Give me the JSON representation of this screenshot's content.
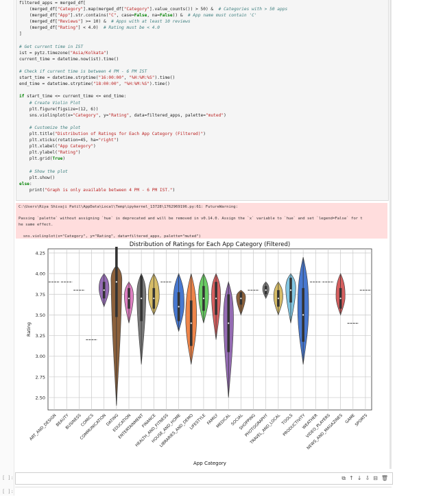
{
  "code_cell": {
    "lines": [
      "filtered_apps = merged_df[",
      "    (merged_df[\"Category\"].map(merged_df[\"Category\"].value_counts()) > 50) &  # Categories with > 50 apps",
      "    (merged_df[\"App\"].str.contains(\"C\", case=False, na=False)) &  # App name must contain 'C'",
      "    (merged_df[\"Reviews\"] >= 10) &  # Apps with at least 10 reviews",
      "    (merged_df[\"Rating\"] < 4.0)  # Rating must be < 4.0",
      "]",
      "",
      "# Get current time in IST",
      "ist = pytz.timezone(\"Asia/Kolkata\")",
      "current_time = datetime.now(ist).time()",
      "",
      "# Check if current time is between 4 PM - 6 PM IST",
      "start_time = datetime.strptime(\"16:00:00\", \"%H:%M:%S\").time()",
      "end_time = datetime.strptime(\"18:00:00\", \"%H:%M:%S\").time()",
      "",
      "if start_time <= current_time <= end_time:",
      "    # Create Violin Plot",
      "    plt.figure(figsize=(12, 6))",
      "    sns.violinplot(x=\"Category\", y=\"Rating\", data=filtered_apps, palette=\"muted\")",
      "",
      "    # Customize the plot",
      "    plt.title(\"Distribution of Ratings for Each App Category (Filtered)\")",
      "    plt.xticks(rotation=45, ha=\"right\")",
      "    plt.xlabel(\"App Category\")",
      "    plt.ylabel(\"Rating\")",
      "    plt.grid(True)",
      "",
      "    # Show the plot",
      "    plt.show()",
      "else:",
      "    print(\"Graph is only available between 4 PM - 6 PM IST.\")"
    ]
  },
  "stderr_output": {
    "lines": [
      "C:\\Users\\Riya Shivaji Patil\\AppData\\Local\\Temp\\ipykernel_13728\\1762969196.py:61: FutureWarning:",
      "",
      "Passing `palette` without assigning `hue` is deprecated and will be removed in v0.14.0. Assign the `x` variable to `hue` and set `legend=False` for t",
      "he same effect.",
      "",
      "  sns.violinplot(x=\"Category\", y=\"Rating\", data=filtered_apps, palette=\"muted\")"
    ]
  },
  "chart_data": {
    "type": "violin",
    "title": "Distribution of Ratings for Each App Category (Filtered)",
    "xlabel": "App Category",
    "ylabel": "Rating",
    "ylim": [
      2.35,
      4.3
    ],
    "yticks": [
      "2.50",
      "2.75",
      "3.00",
      "3.25",
      "3.50",
      "3.75",
      "4.00",
      "4.25"
    ],
    "grid": true,
    "categories": [
      {
        "name": "ART_AND_DESIGN",
        "median": 3.9,
        "lo": 3.9,
        "hi": 3.9,
        "width": 0,
        "color": "#4878d0"
      },
      {
        "name": "BEAUTY",
        "median": 3.9,
        "lo": 3.9,
        "hi": 3.9,
        "width": 0,
        "color": "#ee854a"
      },
      {
        "name": "BUSINESS",
        "median": 3.8,
        "lo": 3.8,
        "hi": 3.8,
        "width": 0,
        "color": "#6acc64"
      },
      {
        "name": "COMICS",
        "median": 3.2,
        "lo": 3.2,
        "hi": 3.2,
        "width": 0,
        "color": "#d65f5f"
      },
      {
        "name": "COMMUNICATION",
        "median": 3.8,
        "lo": 3.6,
        "hi": 4.0,
        "width": 0.55,
        "color": "#956cb4"
      },
      {
        "name": "DATING",
        "median": 3.9,
        "lo": 2.4,
        "hi": 4.1,
        "width": 0.6,
        "color": "#8c613c"
      },
      {
        "name": "EDUCATION",
        "median": 3.7,
        "lo": 3.4,
        "hi": 3.9,
        "width": 0.5,
        "color": "#dc7ec0"
      },
      {
        "name": "ENTERTAINMENT",
        "median": 3.7,
        "lo": 2.9,
        "hi": 4.0,
        "width": 0.5,
        "color": "#797979"
      },
      {
        "name": "FINANCE",
        "median": 3.7,
        "lo": 3.5,
        "hi": 4.0,
        "width": 0.6,
        "color": "#d5bb67"
      },
      {
        "name": "HEALTH_AND_FITNESS",
        "median": 3.9,
        "lo": 3.9,
        "hi": 3.9,
        "width": 0,
        "color": "#82c6e2"
      },
      {
        "name": "HOUSE_AND_HOME",
        "median": 3.6,
        "lo": 3.3,
        "hi": 4.0,
        "width": 0.6,
        "color": "#4878d0"
      },
      {
        "name": "LIBRARIES_AND_DEMO",
        "median": 3.4,
        "lo": 2.9,
        "hi": 4.0,
        "width": 0.6,
        "color": "#ee854a"
      },
      {
        "name": "LIFESTYLE",
        "median": 3.7,
        "lo": 3.4,
        "hi": 4.0,
        "width": 0.55,
        "color": "#6acc64"
      },
      {
        "name": "FAMILY",
        "median": 3.7,
        "lo": 3.2,
        "hi": 4.0,
        "width": 0.5,
        "color": "#d65f5f"
      },
      {
        "name": "MEDICAL",
        "median": 3.4,
        "lo": 2.5,
        "hi": 3.9,
        "width": 0.55,
        "color": "#956cb4"
      },
      {
        "name": "SOCIAL",
        "median": 3.7,
        "lo": 3.5,
        "hi": 3.8,
        "width": 0.5,
        "color": "#8c613c"
      },
      {
        "name": "SHOPPING",
        "median": 3.8,
        "lo": 3.8,
        "hi": 3.8,
        "width": 0,
        "color": "#dc7ec0"
      },
      {
        "name": "PHOTOGRAPHY",
        "median": 3.8,
        "lo": 3.7,
        "hi": 3.9,
        "width": 0.35,
        "color": "#797979"
      },
      {
        "name": "TRAVEL_AND_LOCAL",
        "median": 3.7,
        "lo": 3.5,
        "hi": 3.9,
        "width": 0.5,
        "color": "#d5bb67"
      },
      {
        "name": "TOOLS",
        "median": 3.8,
        "lo": 3.4,
        "hi": 4.0,
        "width": 0.55,
        "color": "#82c6e2"
      },
      {
        "name": "PRODUCTIVITY",
        "median": 3.5,
        "lo": 2.9,
        "hi": 4.2,
        "width": 0.6,
        "color": "#4878d0"
      },
      {
        "name": "WEATHER",
        "median": 3.9,
        "lo": 3.9,
        "hi": 3.9,
        "width": 0,
        "color": "#ee854a"
      },
      {
        "name": "VIDEO_PLAYERS",
        "median": 3.9,
        "lo": 3.9,
        "hi": 3.9,
        "width": 0,
        "color": "#6acc64"
      },
      {
        "name": "NEWS_AND_MAGAZINES",
        "median": 3.7,
        "lo": 3.5,
        "hi": 4.0,
        "width": 0.5,
        "color": "#d65f5f"
      },
      {
        "name": "GAME",
        "median": 3.4,
        "lo": 3.4,
        "hi": 3.4,
        "width": 0,
        "color": "#956cb4"
      },
      {
        "name": "SPORTS",
        "median": 3.8,
        "lo": 3.8,
        "hi": 3.8,
        "width": 0,
        "color": "#8c613c"
      }
    ]
  },
  "next_cell": {
    "prompt": "[ ]:",
    "toolbar": [
      {
        "name": "duplicate-icon",
        "glyph": "⧉"
      },
      {
        "name": "move-up-icon",
        "glyph": "↑"
      },
      {
        "name": "move-down-icon",
        "glyph": "↓"
      },
      {
        "name": "export-icon",
        "glyph": "⇩"
      },
      {
        "name": "insert-icon",
        "glyph": "⊟"
      },
      {
        "name": "delete-icon",
        "glyph": "🗑"
      }
    ]
  },
  "last_cell": {
    "prompt": "[ ]:"
  }
}
